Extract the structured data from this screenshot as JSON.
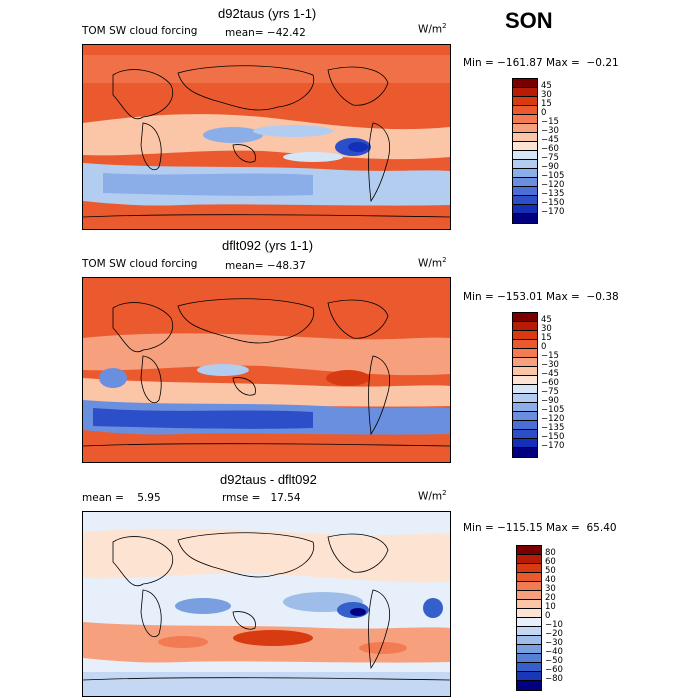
{
  "season": "SON",
  "panels": [
    {
      "title": "d92taus (yrs 1-1)",
      "left_label": "TOM SW cloud forcing",
      "stat_label": "mean= −42.42",
      "units": "W/m",
      "units_exp": "2",
      "minmax": "Min = −161.87 Max =  −0.21",
      "colorbar": {
        "levels": [
          "45",
          "30",
          "15",
          "0",
          "−15",
          "−30",
          "−45",
          "−60",
          "−75",
          "−90",
          "−105",
          "−120",
          "−135",
          "−150",
          "−170"
        ],
        "colors": [
          "#7a0000",
          "#b81c06",
          "#d83a12",
          "#ea5a2e",
          "#f27b53",
          "#f7a07e",
          "#fbc5a8",
          "#fde3d2",
          "#d6e6f7",
          "#b3cdf0",
          "#8caee8",
          "#6a8fdf",
          "#4a6fd6",
          "#2c4fc9",
          "#1530b8",
          "#000080"
        ]
      }
    },
    {
      "title": "dflt092 (yrs 1-1)",
      "left_label": "TOM SW cloud forcing",
      "stat_label": "mean= −48.37",
      "units": "W/m",
      "units_exp": "2",
      "minmax": "Min = −153.01 Max =  −0.38",
      "colorbar": {
        "levels": [
          "45",
          "30",
          "15",
          "0",
          "−15",
          "−30",
          "−45",
          "−60",
          "−75",
          "−90",
          "−105",
          "−120",
          "−135",
          "−150",
          "−170"
        ],
        "colors": [
          "#7a0000",
          "#b81c06",
          "#d83a12",
          "#ea5a2e",
          "#f27b53",
          "#f7a07e",
          "#fbc5a8",
          "#fde3d2",
          "#d6e6f7",
          "#b3cdf0",
          "#8caee8",
          "#6a8fdf",
          "#4a6fd6",
          "#2c4fc9",
          "#1530b8",
          "#000080"
        ]
      }
    },
    {
      "title": "d92taus - dflt092",
      "left_label": "mean =    5.95",
      "stat_label": "rmse =   17.54",
      "units": "W/m",
      "units_exp": "2",
      "minmax": "Min = −115.15 Max =  65.40",
      "colorbar": {
        "levels": [
          "80",
          "60",
          "50",
          "40",
          "30",
          "20",
          "10",
          "0",
          "−10",
          "−20",
          "−30",
          "−40",
          "−50",
          "−60",
          "−80"
        ],
        "colors": [
          "#7a0000",
          "#b81c06",
          "#d83a12",
          "#ea5a2e",
          "#f27b53",
          "#f7a07e",
          "#fbc5a8",
          "#fde3d2",
          "#e6effa",
          "#c4d8f3",
          "#9ebde9",
          "#7a9fe0",
          "#5580d6",
          "#3560cc",
          "#1838b8",
          "#000080"
        ]
      }
    }
  ]
}
